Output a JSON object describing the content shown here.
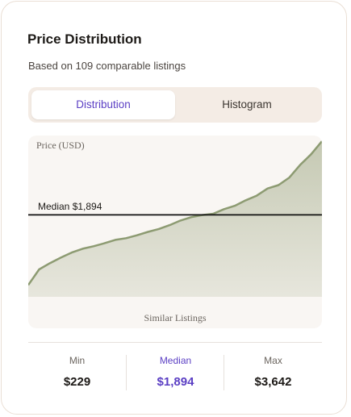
{
  "title": "Price Distribution",
  "subtitle": "Based on 109 comparable listings",
  "tabs": [
    {
      "label": "Distribution",
      "active": true
    },
    {
      "label": "Histogram",
      "active": false
    }
  ],
  "colors": {
    "accent": "#5b3fc4",
    "line": "#8d9b72",
    "fill": "#c5c9b3",
    "median_line": "#111111"
  },
  "chart_data": {
    "type": "area",
    "ylabel": "Price (USD)",
    "xlabel": "Similar Listings",
    "ylim": [
      0,
      3800
    ],
    "median": 1894,
    "median_label": "Median $1,894",
    "x": [
      1,
      5,
      9,
      13,
      17,
      21,
      25,
      29,
      33,
      37,
      41,
      45,
      49,
      53,
      57,
      61,
      65,
      69,
      73,
      77,
      81,
      85,
      89,
      93,
      97,
      101,
      105,
      109
    ],
    "values": [
      229,
      600,
      750,
      880,
      1000,
      1090,
      1150,
      1220,
      1300,
      1340,
      1410,
      1490,
      1560,
      1650,
      1760,
      1840,
      1890,
      1920,
      2030,
      2110,
      2240,
      2350,
      2520,
      2600,
      2780,
      3080,
      3330,
      3642
    ]
  },
  "stats": [
    {
      "label": "Min",
      "value": "$229"
    },
    {
      "label": "Median",
      "value": "$1,894"
    },
    {
      "label": "Max",
      "value": "$3,642"
    }
  ]
}
